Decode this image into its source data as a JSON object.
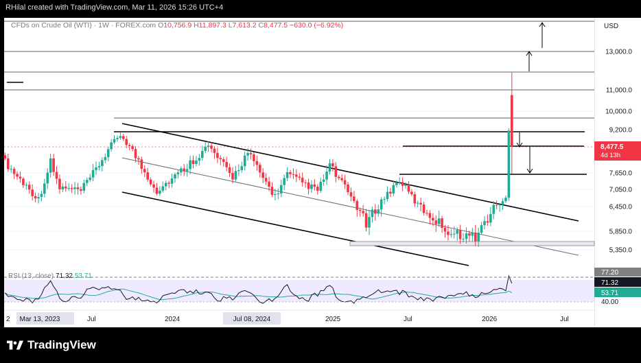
{
  "attribution": "RHilal created with TradingView.com, Mar 11, 2026 15:26 UTC+4",
  "legend": {
    "symbol": "CFDs on Crude Oil (WTI) · 1W · FOREX.com",
    "o_label": "O",
    "o_val": "10,756.9",
    "h_label": "H",
    "h_val": "11,897.3",
    "l_label": "L",
    "l_val": "7,613.2",
    "c_label": "C",
    "c_val": "8,477.5",
    "change": "−630.0 (−6.92%)"
  },
  "currency": "USD",
  "price_labels": [
    "13,000.0",
    "11,000.0",
    "10,000.0",
    "9,200.0",
    "7,650.0",
    "7,050.0",
    "6,450.0",
    "5,850.0",
    "5,350.0"
  ],
  "current_price": {
    "value": "8,477.5",
    "countdown": "4d 13h"
  },
  "rsi": {
    "label": "RSI (13, close)",
    "value": "71.32",
    "ma_value": "53.71",
    "upper_marker": "77.20",
    "axis_label": "40.00"
  },
  "time_labels": [
    {
      "text": "2"
    },
    {
      "text": "Mar 13, 2023",
      "highlight": true
    },
    {
      "text": "Jul"
    },
    {
      "text": "2024"
    },
    {
      "text": "Jul 08, 2024",
      "highlight": true
    },
    {
      "text": "2025"
    },
    {
      "text": "Jul"
    },
    {
      "text": "2026"
    },
    {
      "text": "Jul"
    }
  ],
  "brand": "TradingView",
  "colors": {
    "up": "#22ab94",
    "down": "#f23645",
    "rsi": "#131722",
    "rsi_ma": "#22ab94",
    "rsi_band": "#f0eaff"
  },
  "chart_data": {
    "type": "candlestick",
    "title": "CFDs on Crude Oil (WTI) · 1W · FOREX.com",
    "ylim": [
      5000,
      14500
    ],
    "xlim": [
      "2022-12-26",
      "2026-09-14"
    ],
    "y_ticks": [
      13000,
      11000,
      10000,
      9200,
      7650,
      7050,
      6450,
      5850,
      5350
    ],
    "x_ticks": [
      "Jul",
      "2024",
      "2025",
      "Jul",
      "2026",
      "Jul"
    ],
    "ohlc_last": {
      "open": 10756.9,
      "high": 11897.3,
      "low": 7613.2,
      "close": 8477.5
    },
    "close_trajectory": [
      [
        "2022-12-26",
        8000
      ],
      [
        "2023-03-13",
        6700
      ],
      [
        "2023-04-10",
        8000
      ],
      [
        "2023-05-01",
        7100
      ],
      [
        "2023-06-19",
        7000
      ],
      [
        "2023-09-18",
        9000
      ],
      [
        "2023-12-11",
        7000
      ],
      [
        "2024-04-08",
        8500
      ],
      [
        "2024-06-03",
        7500
      ],
      [
        "2024-07-08",
        8300
      ],
      [
        "2024-09-09",
        6800
      ],
      [
        "2024-10-07",
        7600
      ],
      [
        "2024-12-16",
        7000
      ],
      [
        "2025-01-13",
        7900
      ],
      [
        "2025-04-07",
        6000
      ],
      [
        "2025-06-23",
        7400
      ],
      [
        "2025-08-04",
        6500
      ],
      [
        "2025-10-20",
        5800
      ],
      [
        "2025-12-15",
        5700
      ],
      [
        "2026-01-26",
        6400
      ],
      [
        "2026-02-09",
        6600
      ],
      [
        "2026-02-23",
        6700
      ],
      [
        "2026-03-02",
        9100
      ],
      [
        "2026-03-09",
        8477.5
      ]
    ],
    "rsi_series": {
      "name": "RSI (13, close)",
      "last": 71.32,
      "ma_last": 53.71
    }
  }
}
